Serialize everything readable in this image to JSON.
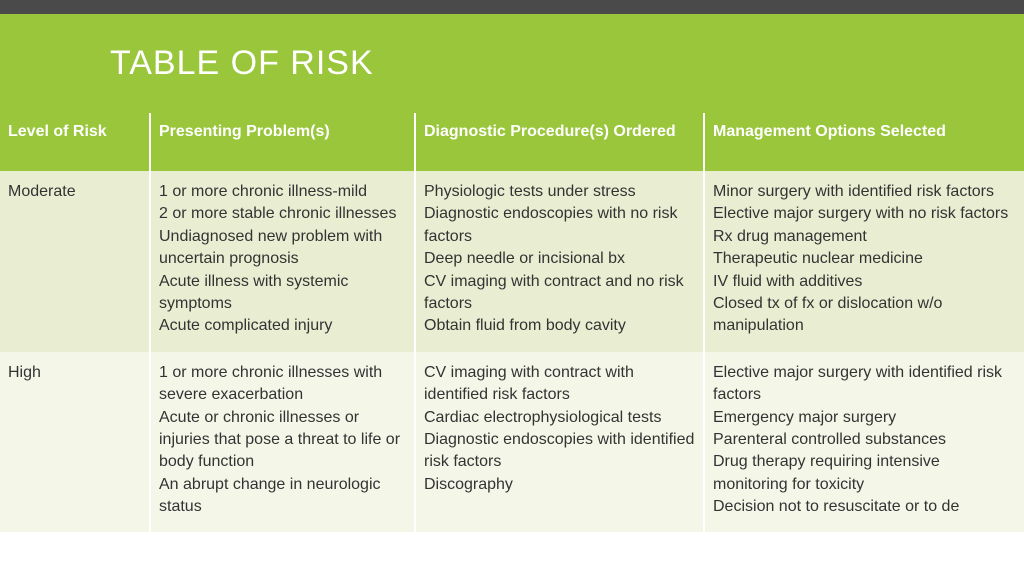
{
  "title": "TABLE OF RISK",
  "colors": {
    "header_bg": "#99c63b",
    "header_text": "#ffffff",
    "row_odd": "#e9eed2",
    "row_even": "#f4f7e8",
    "top_bar": "#4a4a4a",
    "cell_text": "#333333"
  },
  "columns": [
    "Level of Risk",
    "Presenting Problem(s)",
    "Diagnostic Procedure(s) Ordered",
    "Management Options Selected"
  ],
  "rows": [
    {
      "level": "Moderate",
      "presenting": [
        "1 or more chronic illness-mild",
        "2 or more stable chronic illnesses",
        "Undiagnosed new problem with uncertain prognosis",
        "Acute illness with systemic symptoms",
        "Acute complicated injury"
      ],
      "diagnostic": [
        "Physiologic tests under stress",
        "Diagnostic endoscopies with no risk factors",
        "Deep needle or incisional bx",
        "CV imaging with contract and no risk factors",
        "Obtain fluid from body cavity"
      ],
      "management": [
        "Minor surgery with identified risk factors",
        "Elective major surgery with no risk factors",
        "Rx drug management",
        "Therapeutic nuclear medicine",
        "IV fluid with additives",
        "Closed tx of fx or dislocation w/o manipulation"
      ]
    },
    {
      "level": "High",
      "presenting": [
        "1 or more chronic illnesses with severe exacerbation",
        "Acute or chronic illnesses or injuries that pose a threat to life or body function",
        "An abrupt change in neurologic status"
      ],
      "diagnostic": [
        "CV imaging with contract with identified risk factors",
        "Cardiac electrophysiological tests",
        "Diagnostic endoscopies with identified risk factors",
        "Discography"
      ],
      "management": [
        "Elective major surgery with identified risk factors",
        "Emergency major surgery",
        "Parenteral controlled substances",
        "Drug therapy requiring intensive monitoring for toxicity",
        "Decision not to resuscitate or to de"
      ]
    }
  ]
}
